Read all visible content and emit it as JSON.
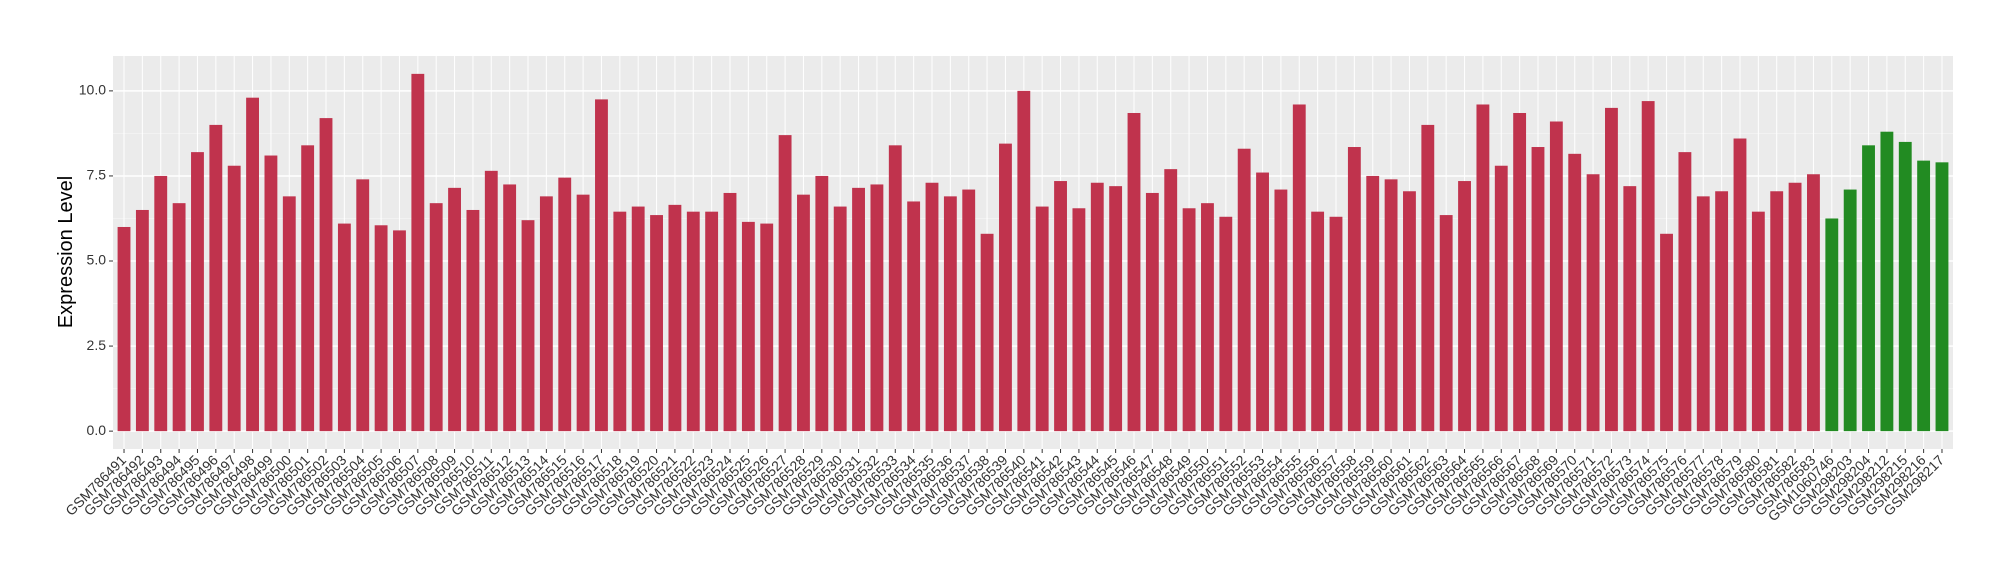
{
  "chart_data": {
    "type": "bar",
    "y_label": "Expression Level",
    "categories": [
      "GSM786491",
      "GSM786492",
      "GSM786493",
      "GSM786494",
      "GSM786495",
      "GSM786496",
      "GSM786497",
      "GSM786498",
      "GSM786499",
      "GSM786500",
      "GSM786501",
      "GSM786502",
      "GSM786503",
      "GSM786504",
      "GSM786505",
      "GSM786506",
      "GSM786507",
      "GSM786508",
      "GSM786509",
      "GSM786510",
      "GSM786511",
      "GSM786512",
      "GSM786513",
      "GSM786514",
      "GSM786515",
      "GSM786516",
      "GSM786517",
      "GSM786518",
      "GSM786519",
      "GSM786520",
      "GSM786521",
      "GSM786522",
      "GSM786523",
      "GSM786524",
      "GSM786525",
      "GSM786526",
      "GSM786527",
      "GSM786528",
      "GSM786529",
      "GSM786530",
      "GSM786531",
      "GSM786532",
      "GSM786533",
      "GSM786534",
      "GSM786535",
      "GSM786536",
      "GSM786537",
      "GSM786538",
      "GSM786539",
      "GSM786540",
      "GSM786541",
      "GSM786542",
      "GSM786543",
      "GSM786544",
      "GSM786545",
      "GSM786546",
      "GSM786547",
      "GSM786548",
      "GSM786549",
      "GSM786550",
      "GSM786551",
      "GSM786552",
      "GSM786553",
      "GSM786554",
      "GSM786555",
      "GSM786556",
      "GSM786557",
      "GSM786558",
      "GSM786559",
      "GSM786560",
      "GSM786561",
      "GSM786562",
      "GSM786563",
      "GSM786564",
      "GSM786565",
      "GSM786566",
      "GSM786567",
      "GSM786568",
      "GSM786569",
      "GSM786570",
      "GSM786571",
      "GSM786572",
      "GSM786573",
      "GSM786574",
      "GSM786575",
      "GSM786576",
      "GSM786577",
      "GSM786578",
      "GSM786579",
      "GSM786580",
      "GSM786581",
      "GSM786582",
      "GSM786583",
      "GSM1060746",
      "GSM298203",
      "GSM298204",
      "GSM298212",
      "GSM298215",
      "GSM298216",
      "GSM298217"
    ],
    "values": [
      6.0,
      6.5,
      7.5,
      6.7,
      8.2,
      9.0,
      7.8,
      9.8,
      8.1,
      6.9,
      8.4,
      9.2,
      6.1,
      7.4,
      6.05,
      5.9,
      10.5,
      6.7,
      7.15,
      6.5,
      7.65,
      7.25,
      6.2,
      6.9,
      7.45,
      6.95,
      9.75,
      6.45,
      6.6,
      6.35,
      6.65,
      6.45,
      6.45,
      7.0,
      6.15,
      6.1,
      8.7,
      6.95,
      7.5,
      6.6,
      7.15,
      7.25,
      8.4,
      6.75,
      7.3,
      6.9,
      7.1,
      5.8,
      8.45,
      10.0,
      6.6,
      7.35,
      6.55,
      7.3,
      7.2,
      9.35,
      7.0,
      7.7,
      6.55,
      6.7,
      6.3,
      8.3,
      7.6,
      7.1,
      9.6,
      6.45,
      6.3,
      8.35,
      7.5,
      7.4,
      7.05,
      9.0,
      6.35,
      7.35,
      9.6,
      7.8,
      9.35,
      8.35,
      9.1,
      8.15,
      7.55,
      9.5,
      7.2,
      9.7,
      5.8,
      8.2,
      6.9,
      7.05,
      8.6,
      6.45,
      7.05,
      7.3,
      7.55,
      6.25,
      7.1,
      8.4,
      8.8,
      8.5,
      7.95,
      7.9
    ],
    "colors": [
      "#c0334d",
      "#c0334d",
      "#c0334d",
      "#c0334d",
      "#c0334d",
      "#c0334d",
      "#c0334d",
      "#c0334d",
      "#c0334d",
      "#c0334d",
      "#c0334d",
      "#c0334d",
      "#c0334d",
      "#c0334d",
      "#c0334d",
      "#c0334d",
      "#c0334d",
      "#c0334d",
      "#c0334d",
      "#c0334d",
      "#c0334d",
      "#c0334d",
      "#c0334d",
      "#c0334d",
      "#c0334d",
      "#c0334d",
      "#c0334d",
      "#c0334d",
      "#c0334d",
      "#c0334d",
      "#c0334d",
      "#c0334d",
      "#c0334d",
      "#c0334d",
      "#c0334d",
      "#c0334d",
      "#c0334d",
      "#c0334d",
      "#c0334d",
      "#c0334d",
      "#c0334d",
      "#c0334d",
      "#c0334d",
      "#c0334d",
      "#c0334d",
      "#c0334d",
      "#c0334d",
      "#c0334d",
      "#c0334d",
      "#c0334d",
      "#c0334d",
      "#c0334d",
      "#c0334d",
      "#c0334d",
      "#c0334d",
      "#c0334d",
      "#c0334d",
      "#c0334d",
      "#c0334d",
      "#c0334d",
      "#c0334d",
      "#c0334d",
      "#c0334d",
      "#c0334d",
      "#c0334d",
      "#c0334d",
      "#c0334d",
      "#c0334d",
      "#c0334d",
      "#c0334d",
      "#c0334d",
      "#c0334d",
      "#c0334d",
      "#c0334d",
      "#c0334d",
      "#c0334d",
      "#c0334d",
      "#c0334d",
      "#c0334d",
      "#c0334d",
      "#c0334d",
      "#c0334d",
      "#c0334d",
      "#c0334d",
      "#c0334d",
      "#c0334d",
      "#c0334d",
      "#c0334d",
      "#c0334d",
      "#c0334d",
      "#c0334d",
      "#c0334d",
      "#c0334d",
      "#228b22",
      "#228b22",
      "#228b22",
      "#228b22",
      "#228b22",
      "#228b22",
      "#228b22"
    ],
    "ylim": [
      -0.525,
      11.025
    ],
    "yticks": [
      {
        "value": 0,
        "label": "0.0"
      },
      2.5,
      {
        "value": 5,
        "label": "5.0"
      },
      7.5,
      {
        "value": 10,
        "label": "10.0"
      }
    ],
    "grid": true
  }
}
